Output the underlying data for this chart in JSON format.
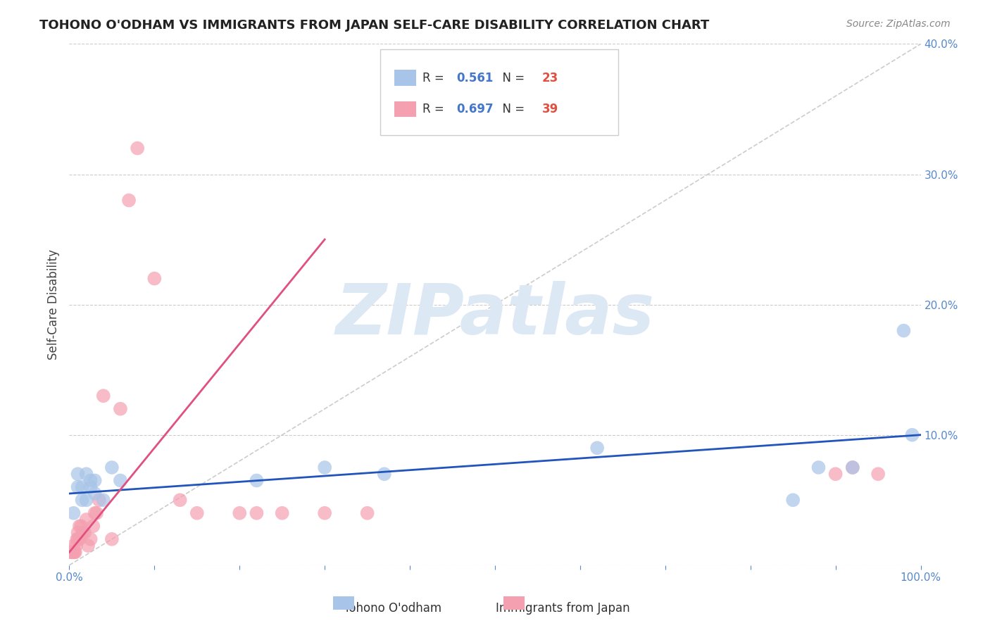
{
  "title": "TOHONO O'ODHAM VS IMMIGRANTS FROM JAPAN SELF-CARE DISABILITY CORRELATION CHART",
  "source": "Source: ZipAtlas.com",
  "xlabel_bottom": [
    "Tohono O'odham",
    "Immigrants from Japan"
  ],
  "ylabel": "Self-Care Disability",
  "xlim": [
    0,
    1.0
  ],
  "ylim": [
    0,
    0.4
  ],
  "x_ticks": [
    0.0,
    0.1,
    0.2,
    0.3,
    0.4,
    0.5,
    0.6,
    0.7,
    0.8,
    0.9,
    1.0
  ],
  "x_tick_labels": [
    "0.0%",
    "",
    "",
    "",
    "",
    "",
    "",
    "",
    "",
    "",
    "100.0%"
  ],
  "y_ticks": [
    0.0,
    0.1,
    0.2,
    0.3,
    0.4
  ],
  "y_tick_labels": [
    "",
    "10.0%",
    "20.0%",
    "30.0%",
    "40.0%"
  ],
  "legend_entries": [
    {
      "label": "R = 0.561   N = 23",
      "color": "#a8c4e8"
    },
    {
      "label": "R = 0.697   N = 39",
      "color": "#f4a0b0"
    }
  ],
  "blue_scatter_x": [
    0.005,
    0.01,
    0.01,
    0.015,
    0.015,
    0.02,
    0.02,
    0.025,
    0.025,
    0.03,
    0.03,
    0.04,
    0.05,
    0.06,
    0.22,
    0.3,
    0.37,
    0.62,
    0.85,
    0.88,
    0.92,
    0.98,
    0.99
  ],
  "blue_scatter_y": [
    0.04,
    0.06,
    0.07,
    0.05,
    0.06,
    0.05,
    0.07,
    0.06,
    0.065,
    0.065,
    0.055,
    0.05,
    0.075,
    0.065,
    0.065,
    0.075,
    0.07,
    0.09,
    0.05,
    0.075,
    0.075,
    0.18,
    0.1
  ],
  "pink_scatter_x": [
    0.002,
    0.003,
    0.004,
    0.005,
    0.005,
    0.006,
    0.007,
    0.008,
    0.009,
    0.01,
    0.01,
    0.012,
    0.012,
    0.014,
    0.016,
    0.018,
    0.02,
    0.022,
    0.025,
    0.028,
    0.03,
    0.032,
    0.035,
    0.04,
    0.05,
    0.06,
    0.07,
    0.08,
    0.1,
    0.13,
    0.15,
    0.2,
    0.22,
    0.25,
    0.3,
    0.35,
    0.9,
    0.92,
    0.95
  ],
  "pink_scatter_y": [
    0.01,
    0.01,
    0.01,
    0.01,
    0.015,
    0.01,
    0.01,
    0.015,
    0.02,
    0.02,
    0.025,
    0.02,
    0.03,
    0.03,
    0.025,
    0.025,
    0.035,
    0.015,
    0.02,
    0.03,
    0.04,
    0.04,
    0.05,
    0.13,
    0.02,
    0.12,
    0.28,
    0.32,
    0.22,
    0.05,
    0.04,
    0.04,
    0.04,
    0.04,
    0.04,
    0.04,
    0.07,
    0.075,
    0.07
  ],
  "blue_line_x": [
    0.0,
    1.0
  ],
  "blue_line_y": [
    0.055,
    0.1
  ],
  "pink_line_x": [
    0.0,
    0.3
  ],
  "pink_line_y": [
    0.01,
    0.25
  ],
  "diag_line_x": [
    0.0,
    1.0
  ],
  "diag_line_y": [
    0.0,
    0.4
  ],
  "scatter_color_blue": "#a8c4e8",
  "scatter_color_pink": "#f4a0b0",
  "line_color_blue": "#2255bb",
  "line_color_pink": "#e05080",
  "diag_line_color": "#cccccc",
  "watermark_text": "ZIPatlas",
  "watermark_color": "#dde8f5",
  "title_color": "#222222",
  "tick_color_right": "#5588cc",
  "background_color": "#ffffff"
}
